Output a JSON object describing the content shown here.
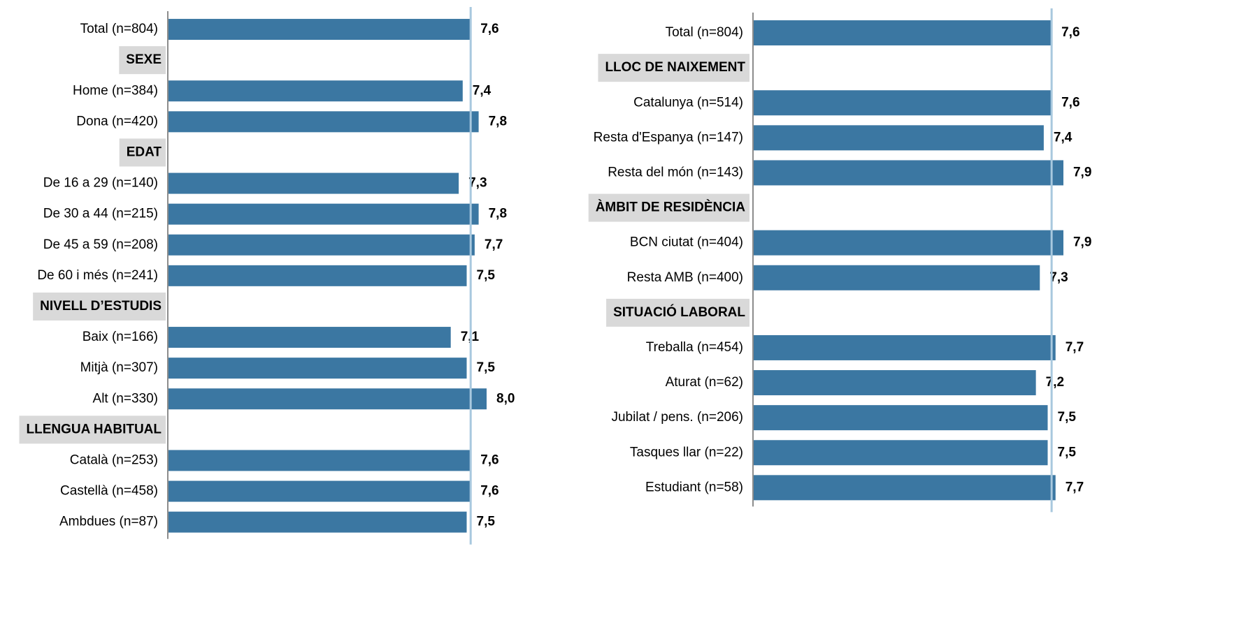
{
  "chart_data": [
    {
      "type": "bar",
      "color": "#3b77a2",
      "xlim": [
        0,
        10
      ],
      "groups": [
        {
          "name": null,
          "categories": [
            "Total (n=804)"
          ],
          "values": [
            7.6
          ],
          "value_labels": [
            "7,6"
          ]
        },
        {
          "name": "SEXE",
          "categories": [
            "Home (n=384)",
            "Dona (n=420)"
          ],
          "values": [
            7.4,
            7.8
          ],
          "value_labels": [
            "7,4",
            "7,8"
          ]
        },
        {
          "name": "EDAT",
          "categories": [
            "De 16 a 29 (n=140)",
            "De 30 a 44 (n=215)",
            "De 45 a 59 (n=208)",
            "De 60 i més (n=241)"
          ],
          "values": [
            7.3,
            7.8,
            7.7,
            7.5
          ],
          "value_labels": [
            "7,3",
            "7,8",
            "7,7",
            "7,5"
          ]
        },
        {
          "name": "NIVELL D’ESTUDIS",
          "categories": [
            "Baix (n=166)",
            "Mitjà (n=307)",
            "Alt (n=330)"
          ],
          "values": [
            7.1,
            7.5,
            8.0
          ],
          "value_labels": [
            "7,1",
            "7,5",
            "8,0"
          ]
        },
        {
          "name": "LLENGUA HABITUAL",
          "categories": [
            "Català  (n=253)",
            "Castellà  (n=458)",
            "Ambdues (n=87)"
          ],
          "values": [
            7.6,
            7.6,
            7.5
          ],
          "value_labels": [
            "7,6",
            "7,6",
            "7,5"
          ]
        }
      ]
    },
    {
      "type": "bar",
      "color": "#3b77a2",
      "xlim": [
        0,
        10
      ],
      "groups": [
        {
          "name": null,
          "categories": [
            "Total (n=804)"
          ],
          "values": [
            7.6
          ],
          "value_labels": [
            "7,6"
          ]
        },
        {
          "name": "LLOC DE NAIXEMENT",
          "categories": [
            "Catalunya (n=514)",
            "Resta d'Espanya (n=147)",
            "Resta del món (n=143)"
          ],
          "values": [
            7.6,
            7.4,
            7.9
          ],
          "value_labels": [
            "7,6",
            "7,4",
            "7,9"
          ]
        },
        {
          "name": "ÀMBIT DE RESIDÈNCIA",
          "categories": [
            "BCN ciutat (n=404)",
            "Resta AMB (n=400)"
          ],
          "values": [
            7.9,
            7.3
          ],
          "value_labels": [
            "7,9",
            "7,3"
          ]
        },
        {
          "name": "SITUACIÓ LABORAL",
          "categories": [
            "Treballa (n=454)",
            "Aturat (n=62)",
            "Jubilat / pens. (n=206)",
            "Tasques llar (n=22)",
            "Estudiant (n=58)"
          ],
          "values": [
            7.7,
            7.2,
            7.5,
            7.5,
            7.7
          ],
          "value_labels": [
            "7,7",
            "7,2",
            "7,5",
            "7,5",
            "7,7"
          ]
        }
      ]
    }
  ]
}
